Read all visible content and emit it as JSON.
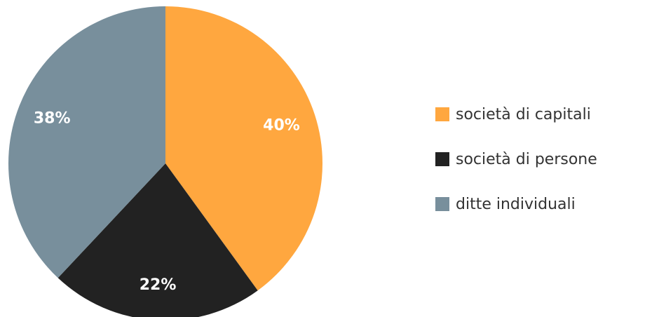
{
  "chart_data": {
    "type": "pie",
    "slices": [
      {
        "label": "società di capitali",
        "value": 40,
        "display": "40%",
        "color": "#FFA73F"
      },
      {
        "label": "società di persone",
        "value": 22,
        "display": "22%",
        "color": "#222222"
      },
      {
        "label": "ditte individuali",
        "value": 38,
        "display": "38%",
        "color": "#788F9C"
      }
    ],
    "legend_position": "right",
    "start_angle": "12 o'clock",
    "direction": "clockwise"
  }
}
